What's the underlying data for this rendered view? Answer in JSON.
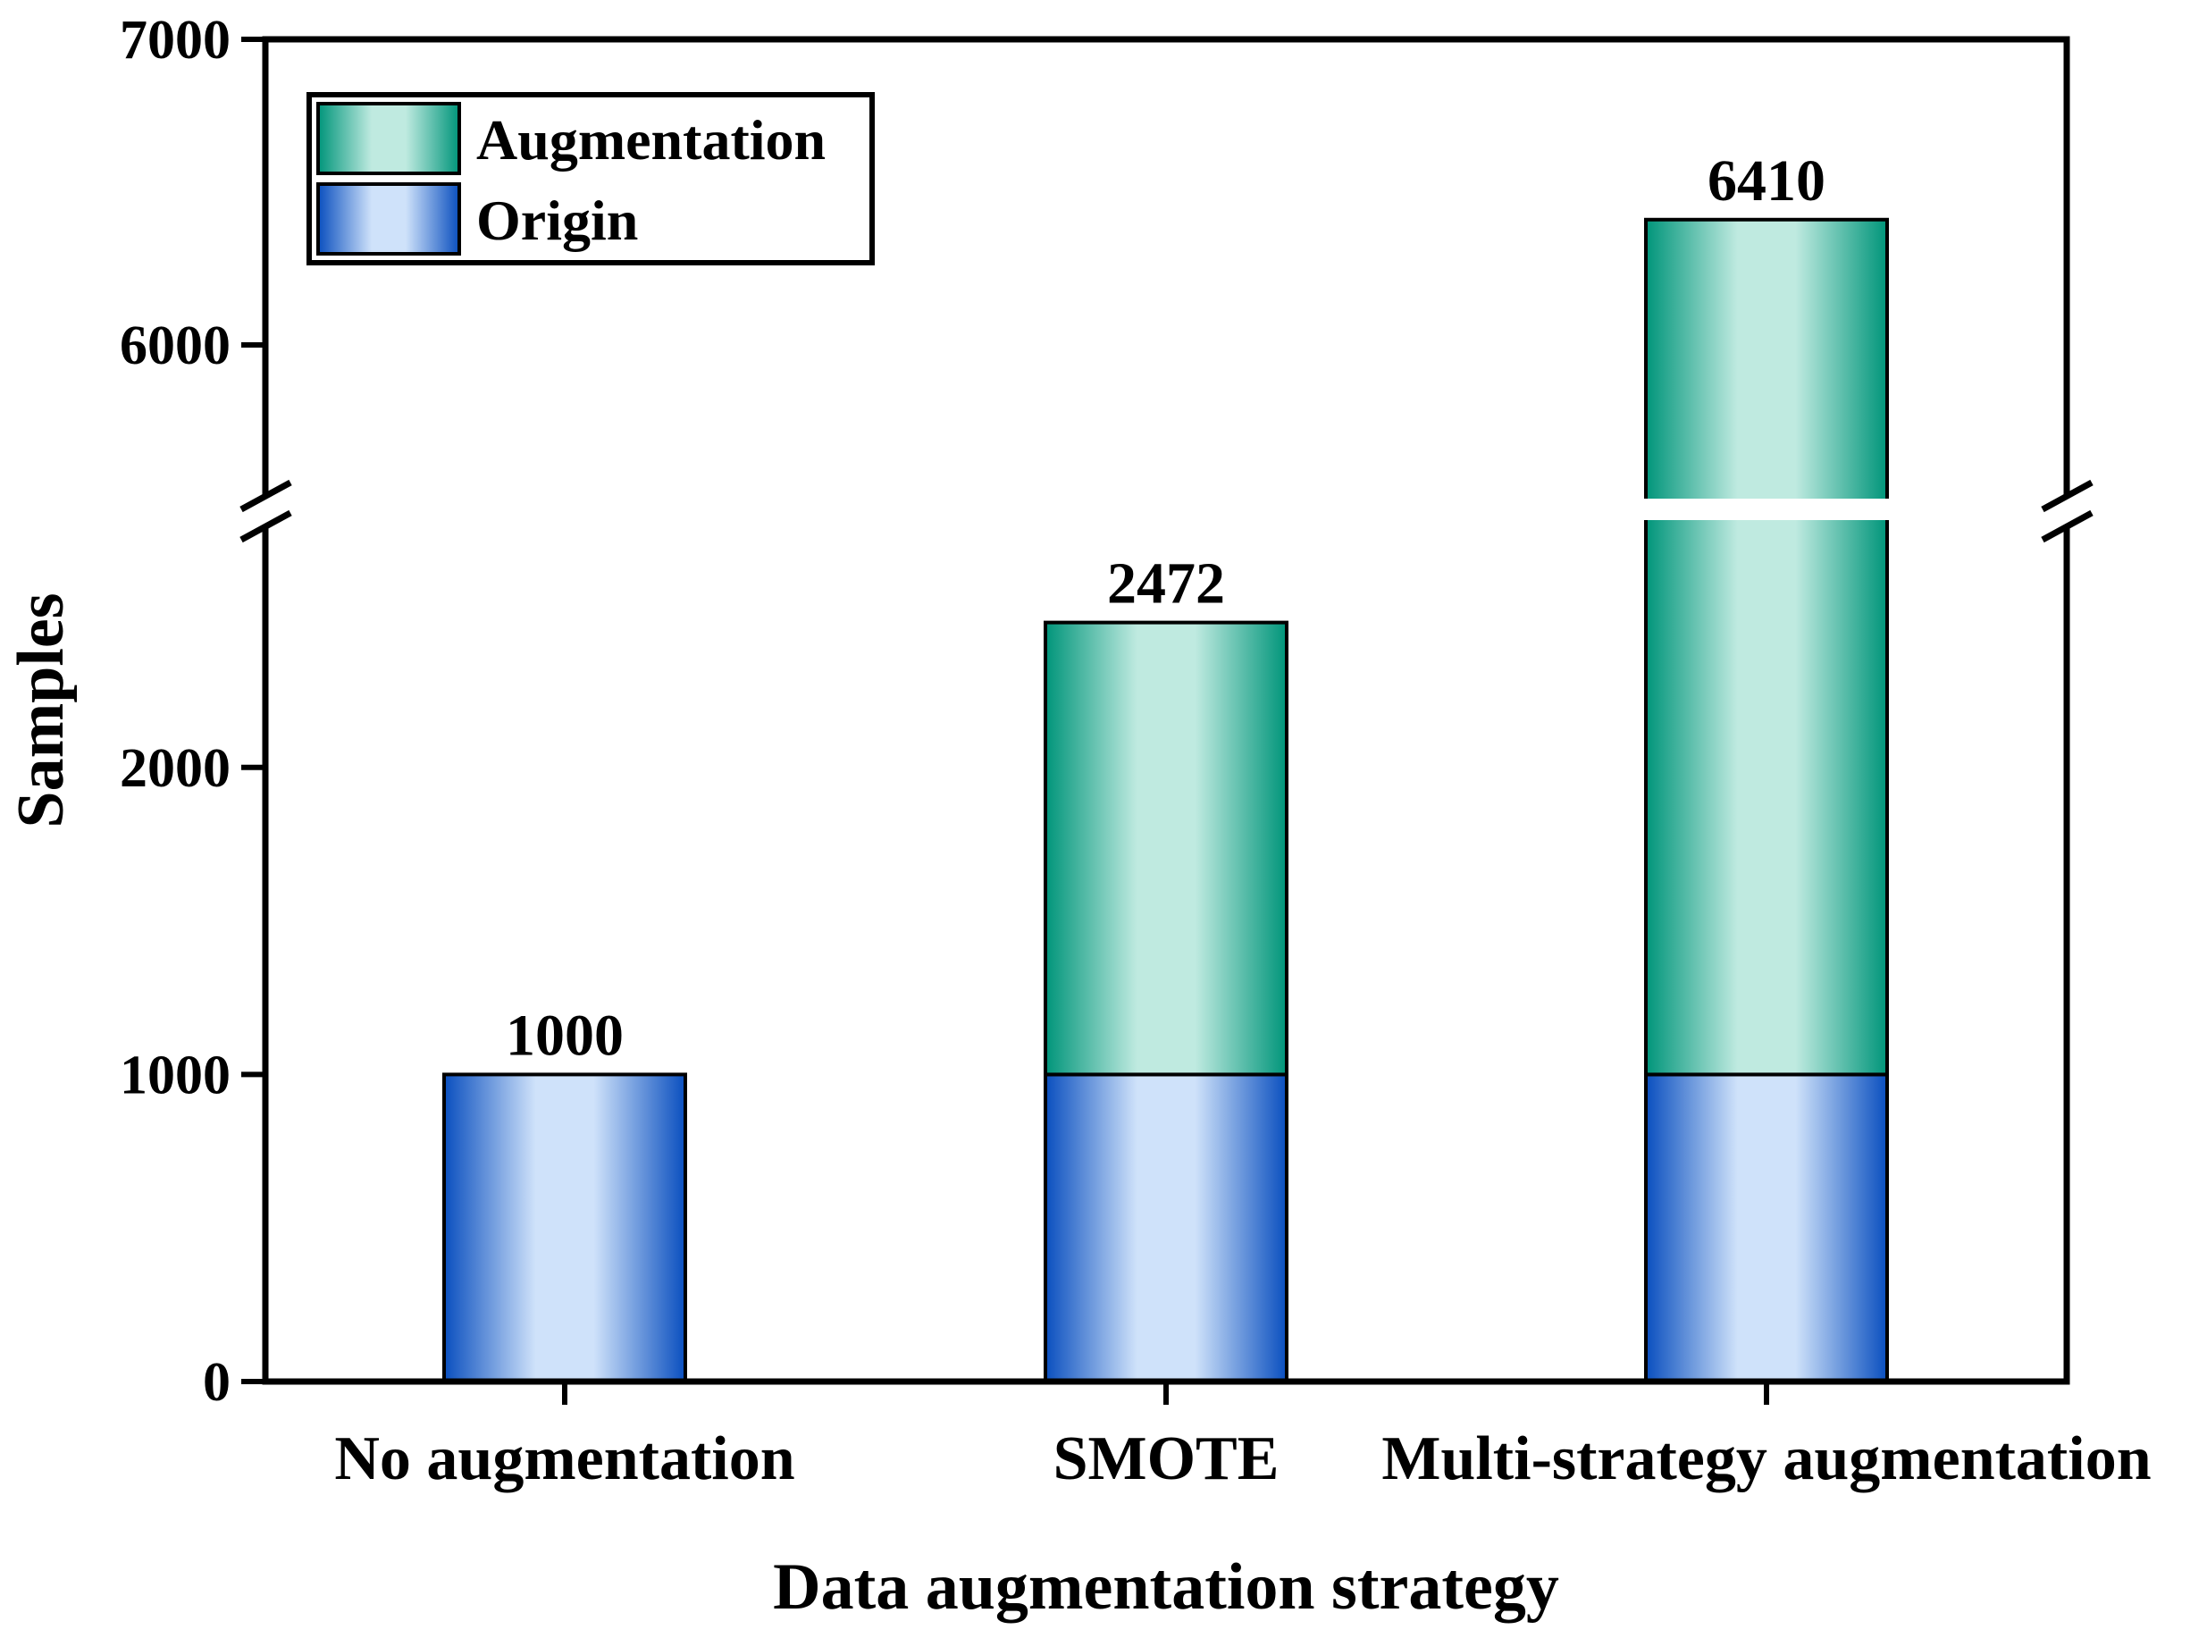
{
  "chart_data": {
    "type": "bar",
    "stacked": true,
    "broken_y_axis": true,
    "y_break_range": [
      2800,
      5500
    ],
    "categories": [
      "No augmentation",
      "SMOTE",
      "Multi-strategy augmentation"
    ],
    "series": [
      {
        "name": "Origin",
        "values": [
          1000,
          1000,
          1000
        ],
        "color_edge": "#0a4fbf",
        "color_center": "#cfe2fa"
      },
      {
        "name": "Augmentation",
        "values": [
          0,
          1472,
          5410
        ],
        "color_edge": "#00957a",
        "color_center": "#bfeae0"
      }
    ],
    "totals": [
      "1000",
      "2472",
      "6410"
    ],
    "xlabel": "Data augmentation strategy",
    "ylabel": "Samples",
    "ylim": [
      0,
      7000
    ],
    "y_ticks_lower": [
      "0",
      "1000",
      "2000"
    ],
    "y_ticks_upper": [
      "6000",
      "7000"
    ],
    "y_tick_values_lower": [
      0,
      1000,
      2000
    ],
    "y_tick_values_upper": [
      6000,
      7000
    ],
    "legend": {
      "position": "top-left",
      "entries": [
        "Augmentation",
        "Origin"
      ]
    },
    "grid": false
  }
}
